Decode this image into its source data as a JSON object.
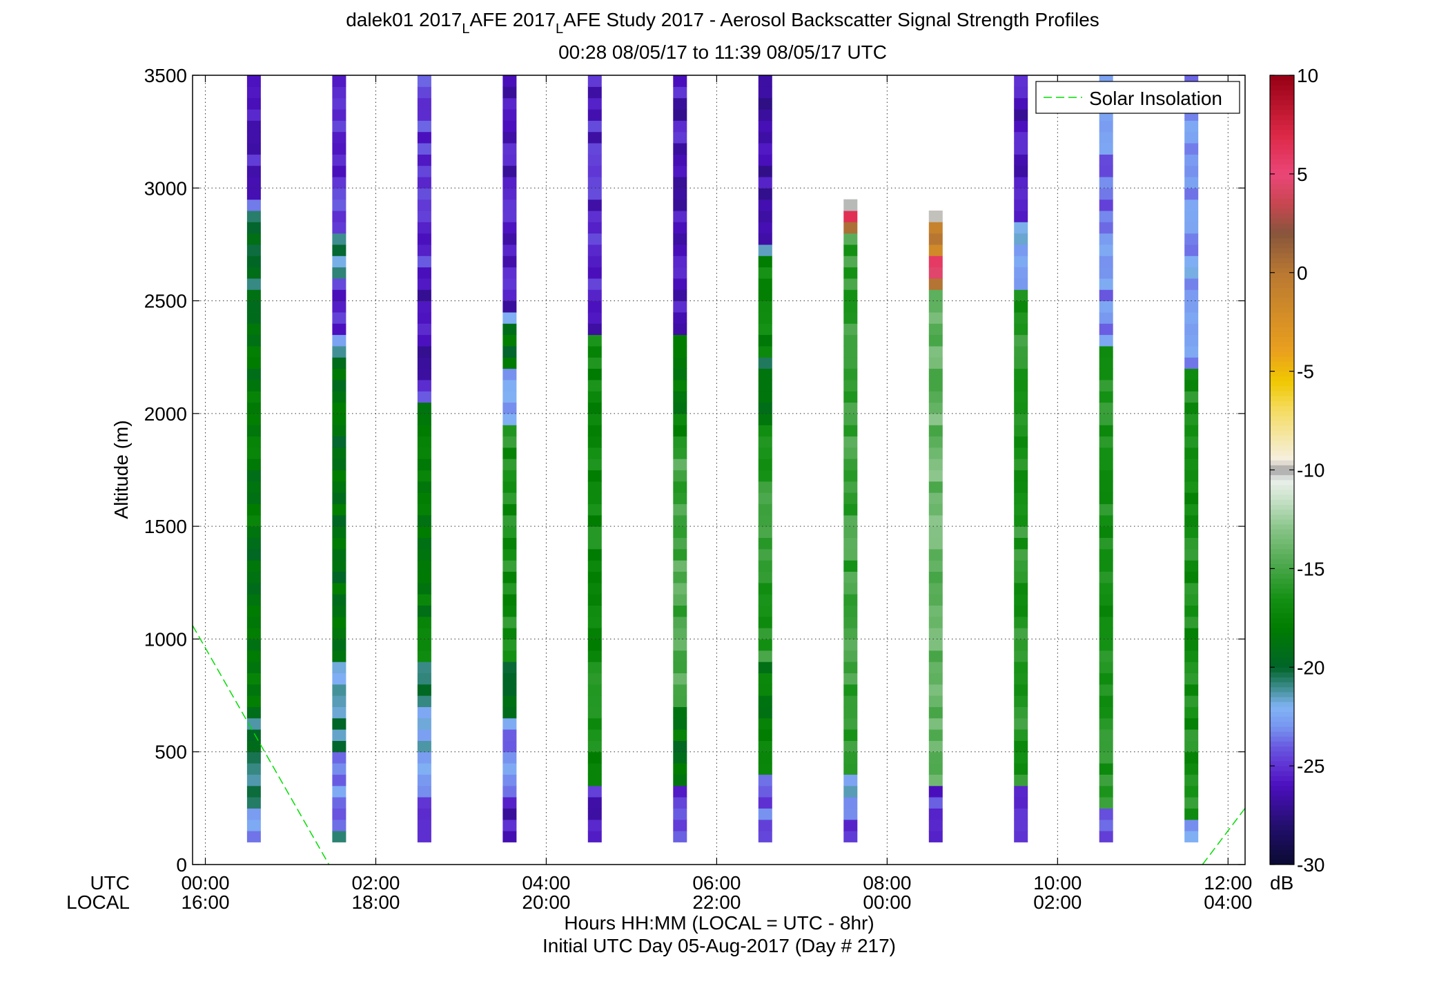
{
  "chart_data": {
    "type": "heatmap",
    "title_line1_segments": [
      "dalek01 2017",
      "L",
      "AFE 2017",
      "L",
      "AFE Study 2017 - Aerosol Backscatter Signal Strength Profiles"
    ],
    "title_line2": "00:28 08/05/17 to 11:39 08/05/17  UTC",
    "ylabel": "Altitude (m)",
    "xlabel_line1": "Hours HH:MM  (LOCAL = UTC - 8hr)",
    "xlabel_line2": "Initial UTC Day 05-Aug-2017 (Day # 217)",
    "utc_row_label": "UTC",
    "local_row_label": "LOCAL",
    "xlim_hours": [
      -0.15,
      12.2
    ],
    "ylim": [
      0,
      3500
    ],
    "grid": true,
    "legend": {
      "position": "top-right",
      "entries": [
        "Solar Insolation"
      ]
    },
    "y_ticks": [
      0,
      500,
      1000,
      1500,
      2000,
      2500,
      3000,
      3500
    ],
    "y_tick_labels": [
      "0",
      "500",
      "1000",
      "1500",
      "2000",
      "2500",
      "3000",
      "3500"
    ],
    "x_ticks_hours": [
      0,
      2,
      4,
      6,
      8,
      10,
      12
    ],
    "x_tick_labels_utc": [
      "00:00",
      "02:00",
      "04:00",
      "06:00",
      "08:00",
      "10:00",
      "12:00"
    ],
    "x_tick_labels_local": [
      "16:00",
      "18:00",
      "20:00",
      "22:00",
      "00:00",
      "02:00",
      "04:00"
    ],
    "colorbar": {
      "label": "dB",
      "range": [
        -30,
        10
      ],
      "ticks": [
        10,
        5,
        0,
        -5,
        -10,
        -15,
        -20,
        -25,
        -30
      ],
      "tick_labels": [
        "10",
        "5",
        "0",
        "-5",
        "-10",
        "-15",
        "-20",
        "-25",
        "-30"
      ]
    },
    "profile_altitude_base_m": 100,
    "profile_bin_m": 50,
    "profiles": [
      {
        "time_hours": 0.57,
        "segments": [
          [
            100,
            250,
            -22.5
          ],
          [
            250,
            700,
            -20.5
          ],
          [
            700,
            2550,
            -18.5
          ],
          [
            2550,
            2900,
            -20
          ],
          [
            2900,
            2950,
            -23
          ],
          [
            2950,
            3500,
            -25.5
          ]
        ]
      },
      {
        "time_hours": 1.57,
        "segments": [
          [
            100,
            150,
            -20.5
          ],
          [
            150,
            500,
            -23
          ],
          [
            500,
            900,
            -21
          ],
          [
            900,
            2250,
            -19
          ],
          [
            2250,
            2350,
            -22
          ],
          [
            2350,
            2600,
            -25.5
          ],
          [
            2600,
            2800,
            -21
          ],
          [
            2800,
            3500,
            -25
          ]
        ]
      },
      {
        "time_hours": 2.57,
        "segments": [
          [
            100,
            400,
            -24
          ],
          [
            400,
            700,
            -22
          ],
          [
            700,
            900,
            -20
          ],
          [
            900,
            2050,
            -18
          ],
          [
            2050,
            2100,
            -23
          ],
          [
            2100,
            2600,
            -26
          ],
          [
            2600,
            3500,
            -25
          ]
        ]
      },
      {
        "time_hours": 3.57,
        "segments": [
          [
            100,
            300,
            -26
          ],
          [
            300,
            650,
            -23.5
          ],
          [
            650,
            900,
            -19.5
          ],
          [
            900,
            1950,
            -16.5
          ],
          [
            1950,
            2200,
            -23
          ],
          [
            2200,
            2400,
            -19
          ],
          [
            2400,
            2450,
            -23
          ],
          [
            2450,
            3500,
            -26
          ]
        ]
      },
      {
        "time_hours": 4.57,
        "segments": [
          [
            100,
            350,
            -25.5
          ],
          [
            350,
            400,
            -17
          ],
          [
            400,
            2350,
            -17
          ],
          [
            2350,
            3500,
            -25.5
          ]
        ]
      },
      {
        "time_hours": 5.57,
        "segments": [
          [
            100,
            350,
            -24.5
          ],
          [
            350,
            700,
            -18.5
          ],
          [
            700,
            1900,
            -15
          ],
          [
            1900,
            2350,
            -18
          ],
          [
            2350,
            3500,
            -26
          ]
        ]
      },
      {
        "time_hours": 6.57,
        "segments": [
          [
            100,
            400,
            -24
          ],
          [
            400,
            900,
            -18
          ],
          [
            900,
            1950,
            -16
          ],
          [
            1950,
            2250,
            -19.5
          ],
          [
            2250,
            2700,
            -17.5
          ],
          [
            2700,
            2750,
            -22
          ],
          [
            2750,
            3500,
            -26.5
          ]
        ]
      },
      {
        "time_hours": 7.57,
        "segments": [
          [
            100,
            200,
            -25.5
          ],
          [
            200,
            400,
            -22
          ],
          [
            400,
            2800,
            -15.5
          ],
          [
            2800,
            2850,
            1
          ],
          [
            2850,
            2900,
            7
          ],
          [
            2900,
            2950,
            -10
          ]
        ]
      },
      {
        "time_hours": 8.57,
        "segments": [
          [
            100,
            350,
            -25
          ],
          [
            350,
            2550,
            -14
          ],
          [
            2550,
            2600,
            1
          ],
          [
            2600,
            2700,
            5
          ],
          [
            2700,
            2850,
            -1
          ],
          [
            2850,
            2900,
            -9
          ]
        ]
      },
      {
        "time_hours": 9.57,
        "segments": [
          [
            100,
            350,
            -25
          ],
          [
            350,
            2550,
            -16
          ],
          [
            2550,
            2850,
            -22
          ],
          [
            2850,
            3500,
            -26
          ]
        ]
      },
      {
        "time_hours": 10.57,
        "segments": [
          [
            100,
            250,
            -24
          ],
          [
            250,
            2300,
            -16.5
          ],
          [
            2300,
            3500,
            -23.5
          ]
        ]
      },
      {
        "time_hours": 11.57,
        "segments": [
          [
            100,
            200,
            -22
          ],
          [
            200,
            2200,
            -16.5
          ],
          [
            2200,
            3500,
            -23
          ]
        ]
      }
    ],
    "solar_insolation_segments": [
      {
        "points": [
          [
            -0.15,
            1060
          ],
          [
            1.45,
            0
          ]
        ]
      },
      {
        "points": [
          [
            11.7,
            0
          ],
          [
            12.2,
            250
          ]
        ]
      }
    ]
  }
}
